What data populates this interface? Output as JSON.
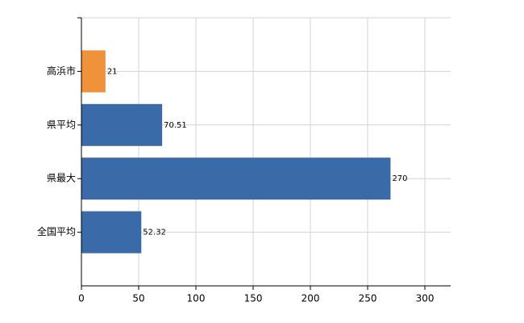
{
  "chart_data": {
    "type": "hbar",
    "categories": [
      "高浜市",
      "県平均",
      "県最大",
      "全国平均"
    ],
    "values": [
      21,
      70.51,
      270,
      52.32
    ],
    "colors": [
      "#f0923a",
      "#3b6aa8",
      "#3b6aa8",
      "#3b6aa8"
    ],
    "xlim": [
      0,
      322.5
    ],
    "xticks": [
      0,
      50,
      100,
      150,
      200,
      250,
      300
    ],
    "grid": true
  }
}
